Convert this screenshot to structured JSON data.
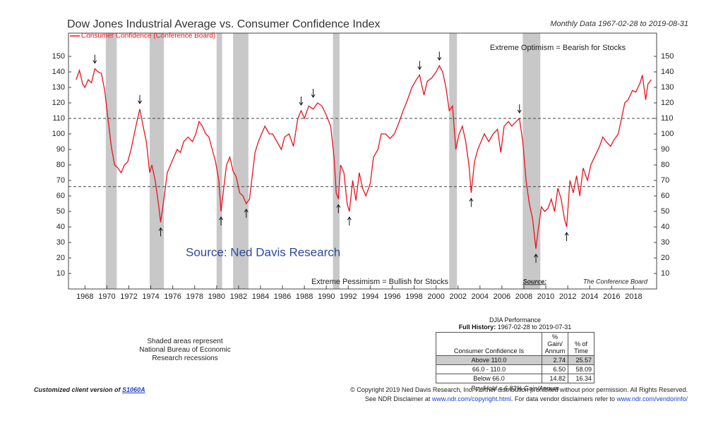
{
  "chart_data": {
    "type": "line",
    "title": "Dow Jones Industrial Average vs. Consumer Confidence Index",
    "subtitle": "Monthly Data 1967-02-28 to 2019-08-31",
    "annotations": {
      "top": "Extreme Optimism = Bearish for Stocks",
      "bottom": "Extreme Pessimism = Bullish for Stocks",
      "source_label": "Source:",
      "source": "The Conference Board",
      "watermark": "Source: Ned Davis Research"
    },
    "x": [
      1967.2,
      1967.5,
      1967.8,
      1968.0,
      1968.3,
      1968.6,
      1968.9,
      1969.2,
      1969.5,
      1969.8,
      1970.1,
      1970.4,
      1970.7,
      1971.0,
      1971.3,
      1971.6,
      1971.9,
      1972.2,
      1972.5,
      1972.8,
      1973.0,
      1973.3,
      1973.6,
      1973.9,
      1974.1,
      1974.4,
      1974.7,
      1974.9,
      1975.2,
      1975.5,
      1975.8,
      1976.1,
      1976.4,
      1976.7,
      1977.0,
      1977.4,
      1977.8,
      1978.1,
      1978.4,
      1978.7,
      1979.0,
      1979.3,
      1979.6,
      1979.9,
      1980.2,
      1980.4,
      1980.6,
      1980.9,
      1981.2,
      1981.5,
      1981.8,
      1982.1,
      1982.4,
      1982.7,
      1983.0,
      1983.2,
      1983.5,
      1983.8,
      1984.1,
      1984.4,
      1984.8,
      1985.1,
      1985.5,
      1985.9,
      1986.2,
      1986.6,
      1987.0,
      1987.4,
      1987.7,
      1988.0,
      1988.4,
      1988.8,
      1989.2,
      1989.6,
      1990.0,
      1990.4,
      1990.7,
      1990.9,
      1991.1,
      1991.3,
      1991.6,
      1991.9,
      1992.1,
      1992.4,
      1992.7,
      1993.0,
      1993.3,
      1993.6,
      1994.0,
      1994.3,
      1994.7,
      1995.0,
      1995.4,
      1995.8,
      1996.2,
      1996.6,
      1997.0,
      1997.4,
      1997.8,
      1998.2,
      1998.5,
      1998.9,
      1999.2,
      1999.6,
      2000.0,
      2000.3,
      2000.6,
      2000.9,
      2001.2,
      2001.5,
      2001.8,
      2002.1,
      2002.4,
      2002.7,
      2003.0,
      2003.2,
      2003.5,
      2003.8,
      2004.1,
      2004.4,
      2004.8,
      2005.2,
      2005.6,
      2005.9,
      2006.2,
      2006.6,
      2006.9,
      2007.3,
      2007.6,
      2007.9,
      2008.2,
      2008.5,
      2008.8,
      2009.1,
      2009.3,
      2009.6,
      2009.9,
      2010.2,
      2010.5,
      2010.8,
      2011.1,
      2011.4,
      2011.7,
      2011.9,
      2012.2,
      2012.5,
      2012.8,
      2013.1,
      2013.4,
      2013.8,
      2014.1,
      2014.5,
      2014.9,
      2015.2,
      2015.5,
      2015.9,
      2016.2,
      2016.6,
      2016.9,
      2017.2,
      2017.5,
      2017.9,
      2018.2,
      2018.6,
      2018.8,
      2019.1,
      2019.3,
      2019.6
    ],
    "series": [
      {
        "name": "Consumer Confidence (Conference Board)",
        "color": "#e8141e",
        "values": [
          135,
          141,
          132,
          130,
          135,
          133,
          142,
          140,
          139,
          128,
          110,
          92,
          80,
          78,
          75,
          80,
          82,
          90,
          100,
          110,
          116,
          105,
          95,
          75,
          80,
          70,
          55,
          43,
          58,
          75,
          80,
          85,
          90,
          88,
          95,
          98,
          95,
          100,
          108,
          105,
          100,
          98,
          90,
          82,
          70,
          50,
          62,
          80,
          85,
          76,
          72,
          62,
          60,
          55,
          58,
          70,
          88,
          95,
          100,
          105,
          100,
          100,
          95,
          90,
          98,
          100,
          92,
          110,
          115,
          110,
          118,
          116,
          120,
          118,
          112,
          105,
          85,
          62,
          58,
          80,
          75,
          55,
          50,
          70,
          57,
          75,
          65,
          60,
          68,
          85,
          90,
          100,
          100,
          97,
          100,
          107,
          115,
          122,
          130,
          135,
          138,
          125,
          134,
          136,
          140,
          144,
          140,
          130,
          115,
          118,
          90,
          100,
          105,
          95,
          80,
          62,
          82,
          90,
          95,
          100,
          95,
          100,
          103,
          88,
          105,
          108,
          105,
          108,
          110,
          95,
          70,
          55,
          45,
          26,
          38,
          53,
          50,
          52,
          58,
          50,
          65,
          58,
          45,
          40,
          70,
          62,
          73,
          60,
          78,
          70,
          80,
          86,
          92,
          98,
          95,
          92,
          96,
          100,
          110,
          120,
          122,
          128,
          127,
          133,
          138,
          122,
          132,
          135
        ]
      }
    ],
    "recessions": [
      [
        1969.9,
        1970.9
      ],
      [
        1973.9,
        1975.2
      ],
      [
        1980.0,
        1980.5
      ],
      [
        1981.5,
        1982.9
      ],
      [
        1990.6,
        1991.2
      ],
      [
        2001.2,
        2001.9
      ],
      [
        2007.9,
        2009.5
      ]
    ],
    "reference_lines": [
      110,
      66
    ],
    "arrows": [
      {
        "x": 1968.9,
        "value": 142,
        "direction": "down"
      },
      {
        "x": 1973.0,
        "value": 116,
        "direction": "down"
      },
      {
        "x": 1987.7,
        "value": 115,
        "direction": "down"
      },
      {
        "x": 1988.8,
        "value": 120,
        "direction": "down"
      },
      {
        "x": 1998.5,
        "value": 138,
        "direction": "down"
      },
      {
        "x": 2000.3,
        "value": 144,
        "direction": "down"
      },
      {
        "x": 2007.6,
        "value": 110,
        "direction": "down"
      },
      {
        "x": 1974.9,
        "value": 43,
        "direction": "up"
      },
      {
        "x": 1980.4,
        "value": 50,
        "direction": "up"
      },
      {
        "x": 1982.7,
        "value": 55,
        "direction": "up"
      },
      {
        "x": 1991.1,
        "value": 58,
        "direction": "up"
      },
      {
        "x": 1992.1,
        "value": 50,
        "direction": "up"
      },
      {
        "x": 2003.2,
        "value": 62,
        "direction": "up"
      },
      {
        "x": 2009.1,
        "value": 26,
        "direction": "up"
      },
      {
        "x": 2011.9,
        "value": 40,
        "direction": "up"
      }
    ],
    "xlim": [
      1966.5,
      2020.1
    ],
    "xticks": [
      1968,
      1970,
      1972,
      1974,
      1976,
      1978,
      1980,
      1982,
      1984,
      1986,
      1988,
      1990,
      1992,
      1994,
      1996,
      1998,
      2000,
      2002,
      2004,
      2006,
      2008,
      2010,
      2012,
      2014,
      2016,
      2018
    ],
    "ylim": [
      0,
      165
    ],
    "yticks": [
      10,
      20,
      30,
      40,
      50,
      60,
      70,
      80,
      90,
      100,
      110,
      120,
      130,
      140,
      150
    ]
  },
  "recession_note": "Shaded areas represent National Bureau of Economic Research recessions",
  "table": {
    "title": "DJIA Performance",
    "subtitle_label": "Full History:",
    "subtitle": "1967-02-28 to 2019-07-31",
    "header": [
      "Consumer Confidence Is",
      "% Gain/ Annum",
      "% of Time"
    ],
    "rows": [
      [
        "Above 110.0",
        "2.74",
        "25.57"
      ],
      [
        "66.0 - 110.0",
        "6.50",
        "58.09"
      ],
      [
        "Below 66.0",
        "14.82",
        "16.34"
      ]
    ],
    "footnote": "Buy/Hold = 6.83% Gain/Annum"
  },
  "footer": {
    "client_label": "Customized client version of",
    "client_code": "S1060A",
    "copyright": "© Copyright 2019 Ned Davis Research, Inc. Further distribution prohibited without prior permission. All Rights Reserved.",
    "disclaimer": [
      "See NDR Disclaimer at ",
      "www.ndr.com/copyright.html",
      ". For data vendor disclaimers refer to ",
      "www.ndr.com/vendorinfo/"
    ]
  }
}
